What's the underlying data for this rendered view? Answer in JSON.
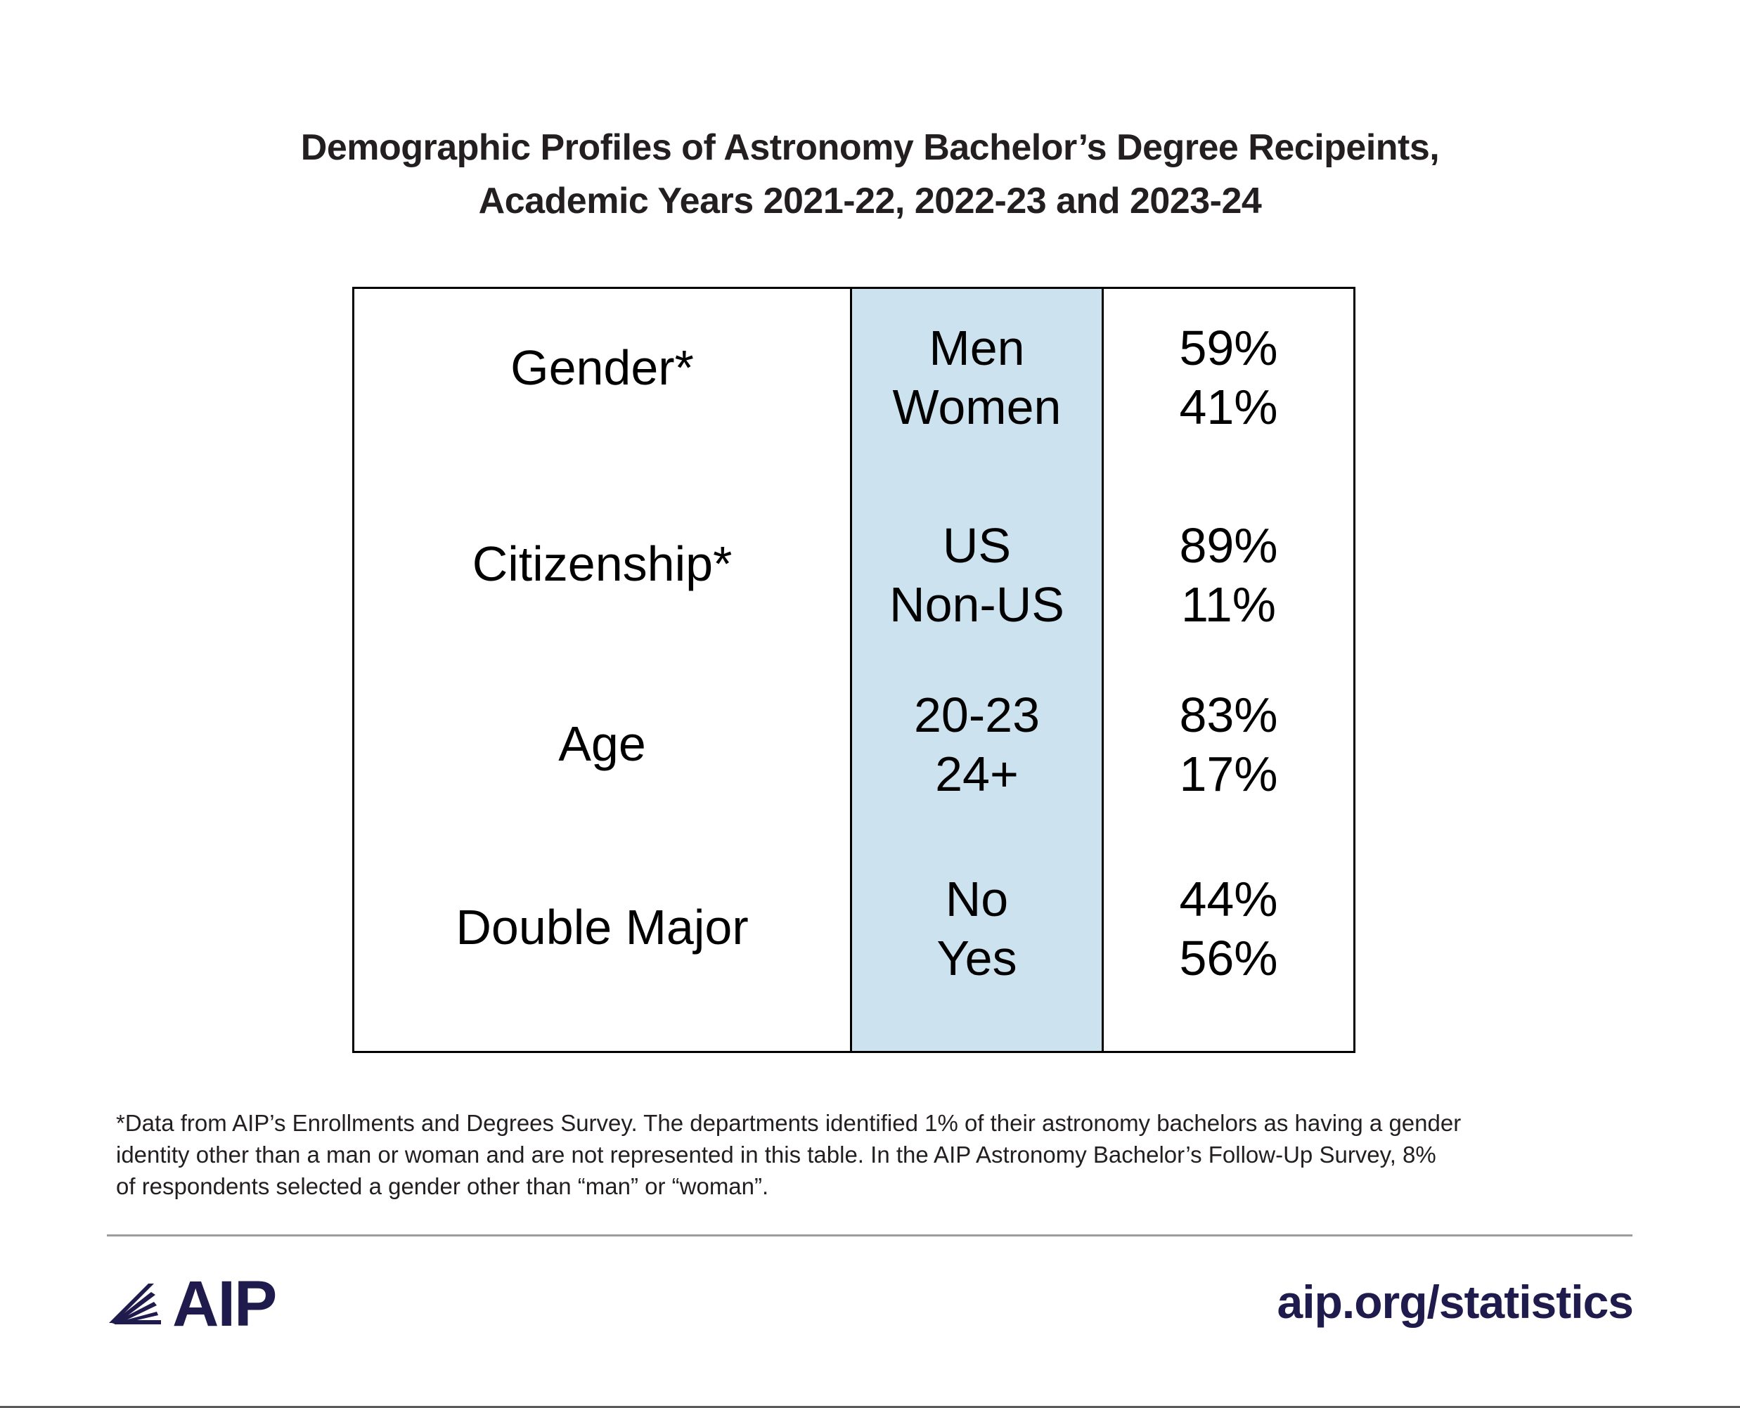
{
  "title": {
    "line1": "Demographic Profiles of Astronomy Bachelor’s Degree Recipeints,",
    "line2": "Academic Years 2021-22, 2022-23 and 2023-24"
  },
  "chart_data": {
    "type": "table",
    "rows": [
      {
        "category": "Gender*",
        "options": [
          "Men",
          "Women"
        ],
        "values": [
          "59%",
          "41%"
        ]
      },
      {
        "category": "Citizenship*",
        "options": [
          "US",
          "Non-US"
        ],
        "values": [
          "89%",
          "11%"
        ]
      },
      {
        "category": "Age",
        "options": [
          "20-23",
          "24+"
        ],
        "values": [
          "83%",
          "17%"
        ]
      },
      {
        "category": "Double Major",
        "options": [
          "No",
          "Yes"
        ],
        "values": [
          "44%",
          "56%"
        ]
      }
    ],
    "highlight_color": "#cce2ef"
  },
  "footnote": {
    "line1": "*Data from AIP’s Enrollments and Degrees Survey. The departments identified 1% of their astronomy bachelors as having a gender",
    "line2": "identity other than a man or woman and are not represented in this table. In the AIP Astronomy Bachelor’s Follow-Up Survey, 8%",
    "line3": "of respondents selected a gender other than “man” or “woman”."
  },
  "footer": {
    "logo_text": "AIP",
    "logo_icon": "aip-rays-icon",
    "url": "aip.org/statistics",
    "brand_color": "#1f1b4d"
  }
}
